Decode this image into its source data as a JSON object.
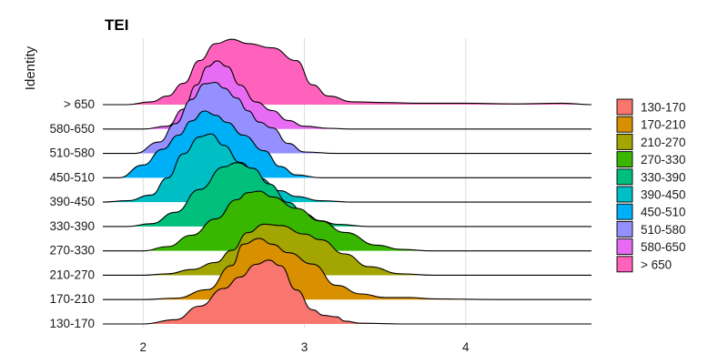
{
  "chart_data": {
    "type": "ridgeline",
    "title": "TEI",
    "xlabel": "",
    "ylabel": "Identity",
    "xlim": [
      1.75,
      4.78
    ],
    "x_ticks": [
      2,
      3,
      4
    ],
    "grid": "vertical major lines",
    "legend_position": "right",
    "categories": [
      "130-170",
      "170-210",
      "210-270",
      "270-330",
      "330-390",
      "390-450",
      "450-510",
      "510-580",
      "580-650",
      "> 650"
    ],
    "colors": [
      "#F8766D",
      "#D89000",
      "#A3A500",
      "#39B600",
      "#00BF7D",
      "#00BFC4",
      "#00B0F6",
      "#9590FF",
      "#E76BF3",
      "#FF62BC"
    ],
    "legend": [
      "130-170",
      "170-210",
      "210-270",
      "270-330",
      "330-390",
      "390-450",
      "450-510",
      "510-580",
      "580-650",
      "> 650"
    ],
    "ridges": [
      {
        "name": "130-170",
        "x": [
          1.75,
          2.0,
          2.2,
          2.35,
          2.5,
          2.6,
          2.7,
          2.78,
          2.85,
          2.95,
          3.05,
          3.12,
          3.2,
          3.25,
          3.35,
          3.6,
          4.78
        ],
        "density": [
          0.0,
          0.0,
          0.06,
          0.25,
          0.5,
          0.66,
          0.84,
          0.9,
          0.82,
          0.48,
          0.2,
          0.12,
          0.1,
          0.04,
          0.01,
          0.0,
          0.0
        ]
      },
      {
        "name": "170-210",
        "x": [
          1.75,
          2.0,
          2.2,
          2.4,
          2.55,
          2.62,
          2.72,
          2.8,
          2.9,
          3.05,
          3.2,
          3.35,
          3.5,
          3.65,
          3.8,
          4.2,
          4.78
        ],
        "density": [
          0.0,
          0.0,
          0.02,
          0.14,
          0.48,
          0.78,
          0.86,
          0.78,
          0.66,
          0.5,
          0.2,
          0.08,
          0.03,
          0.03,
          0.01,
          0.0,
          0.0
        ]
      },
      {
        "name": "210-270",
        "x": [
          1.75,
          2.0,
          2.15,
          2.3,
          2.45,
          2.55,
          2.65,
          2.75,
          2.85,
          3.0,
          3.1,
          3.25,
          3.4,
          3.6,
          3.8,
          4.78
        ],
        "density": [
          0.0,
          0.0,
          0.02,
          0.08,
          0.18,
          0.35,
          0.6,
          0.72,
          0.7,
          0.58,
          0.5,
          0.3,
          0.12,
          0.02,
          0.0,
          0.0
        ]
      },
      {
        "name": "270-330",
        "x": [
          1.75,
          2.0,
          2.15,
          2.3,
          2.45,
          2.58,
          2.65,
          2.72,
          2.8,
          2.95,
          3.1,
          3.25,
          3.45,
          3.6,
          3.8,
          4.78
        ],
        "density": [
          0.0,
          0.0,
          0.06,
          0.22,
          0.45,
          0.72,
          0.82,
          0.84,
          0.76,
          0.6,
          0.42,
          0.26,
          0.08,
          0.02,
          0.0,
          0.0
        ]
      },
      {
        "name": "330-390",
        "x": [
          1.75,
          1.9,
          2.05,
          2.2,
          2.35,
          2.5,
          2.58,
          2.68,
          2.78,
          2.9,
          3.0,
          3.1,
          3.2,
          3.4,
          4.78
        ],
        "density": [
          0.0,
          0.0,
          0.04,
          0.2,
          0.52,
          0.84,
          0.9,
          0.82,
          0.6,
          0.34,
          0.18,
          0.08,
          0.03,
          0.0,
          0.0
        ]
      },
      {
        "name": "390-450",
        "x": [
          1.75,
          1.9,
          2.05,
          2.15,
          2.25,
          2.35,
          2.42,
          2.5,
          2.6,
          2.72,
          2.85,
          2.95,
          3.1,
          3.3,
          4.78
        ],
        "density": [
          0.0,
          0.02,
          0.1,
          0.34,
          0.68,
          0.92,
          0.96,
          0.8,
          0.56,
          0.34,
          0.16,
          0.08,
          0.02,
          0.0,
          0.0
        ]
      },
      {
        "name": "450-510",
        "x": [
          1.75,
          1.85,
          2.0,
          2.12,
          2.22,
          2.3,
          2.38,
          2.45,
          2.52,
          2.62,
          2.75,
          2.85,
          2.95,
          3.1,
          4.78
        ],
        "density": [
          0.0,
          0.0,
          0.18,
          0.4,
          0.6,
          0.8,
          0.94,
          0.88,
          0.78,
          0.6,
          0.38,
          0.16,
          0.04,
          0.0,
          0.0
        ]
      },
      {
        "name": "510-580",
        "x": [
          1.75,
          1.95,
          2.1,
          2.2,
          2.3,
          2.38,
          2.45,
          2.5,
          2.58,
          2.65,
          2.72,
          2.8,
          2.9,
          3.0,
          3.2,
          4.78
        ],
        "density": [
          0.0,
          0.0,
          0.16,
          0.42,
          0.76,
          0.98,
          1.0,
          0.92,
          0.78,
          0.6,
          0.44,
          0.36,
          0.14,
          0.02,
          0.0,
          0.0
        ]
      },
      {
        "name": "580-650",
        "x": [
          1.75,
          2.0,
          2.15,
          2.25,
          2.33,
          2.4,
          2.46,
          2.52,
          2.6,
          2.7,
          2.8,
          2.9,
          3.0,
          3.15,
          3.3,
          4.78
        ],
        "density": [
          0.0,
          0.0,
          0.04,
          0.28,
          0.62,
          0.88,
          0.96,
          0.88,
          0.62,
          0.38,
          0.26,
          0.12,
          0.04,
          0.01,
          0.0,
          0.0
        ]
      },
      {
        "name": "> 650",
        "x": [
          1.75,
          1.9,
          2.05,
          2.15,
          2.25,
          2.35,
          2.45,
          2.55,
          2.65,
          2.8,
          2.95,
          3.05,
          3.15,
          3.3,
          3.5,
          3.7,
          4.0,
          4.3,
          4.6,
          4.78
        ],
        "density": [
          0.0,
          0.0,
          0.04,
          0.12,
          0.3,
          0.62,
          0.86,
          0.92,
          0.86,
          0.8,
          0.62,
          0.28,
          0.12,
          0.04,
          0.03,
          0.02,
          0.02,
          0.01,
          0.02,
          0.0
        ]
      }
    ]
  }
}
